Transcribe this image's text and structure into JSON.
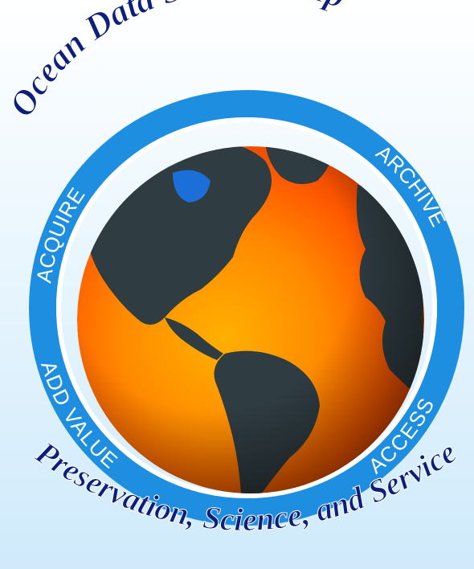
{
  "emblem": {
    "top_title": "Ocean Data Stewardship",
    "bottom_title": "Preservation, Science, and Service",
    "ring_labels": {
      "acquire": "ACQUIRE",
      "archive": "ARCHIVE",
      "add_value": "ADD VALUE",
      "access": "ACCESS"
    },
    "colors": {
      "ring_blue": "#1e8fe0",
      "title_navy": "#0d1f7a",
      "land": "#2f3c42",
      "warm_ocean": "#ff7a00",
      "cool_ocean": "#1c6fd8"
    },
    "globe_image": "earth-sea-surface-temperature-globe"
  }
}
